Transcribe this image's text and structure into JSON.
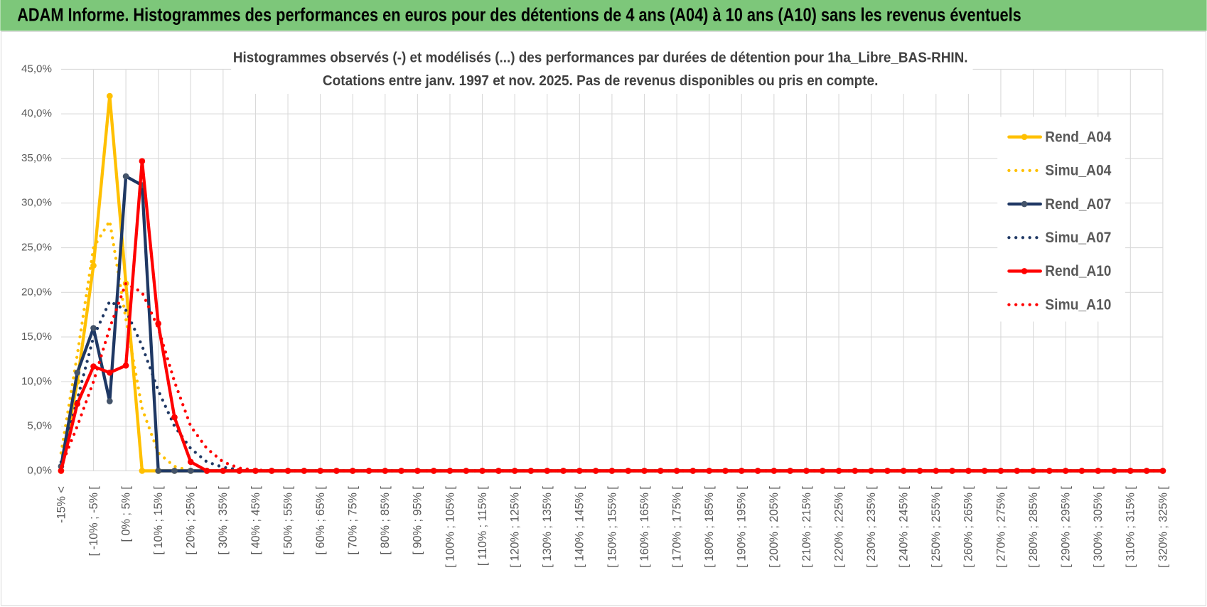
{
  "header": {
    "title": "ADAM Informe. Histogrammes des performances en euros pour des détentions de 4 ans (A04) à 10 ans (A10) sans les revenus éventuels"
  },
  "chart_data": {
    "type": "line",
    "title": "Histogrammes observés (-) et modélisés (...) des performances par durées de détention pour 1ha_Libre_BAS-RHIN.",
    "subtitle": "Cotations entre janv. 1997 et nov. 2025. Pas de revenus disponibles ou pris en compte.",
    "categories": [
      "-15% <",
      null,
      "[ -10% ; -5% [",
      null,
      "[ 0% ; 5% [",
      null,
      "[ 10% ; 15% [",
      null,
      "[ 20% ; 25% [",
      null,
      "[ 30% ; 35% [",
      null,
      "[ 40% ; 45% [",
      null,
      "[ 50% ; 55% [",
      null,
      "[ 60% ; 65% [",
      null,
      "[ 70% ; 75% [",
      null,
      "[ 80% ; 85% [",
      null,
      "[ 90% ; 95% [",
      null,
      "[ 100% ; 105% [",
      null,
      "[ 110% ; 115% [",
      null,
      "[ 120% ; 125% [",
      null,
      "[ 130% ; 135% [",
      null,
      "[ 140% ; 145% [",
      null,
      "[ 150% ; 155% [",
      null,
      "[ 160% ; 165% [",
      null,
      "[ 170% ; 175% [",
      null,
      "[ 180% ; 185% [",
      null,
      "[ 190% ; 195% [",
      null,
      "[ 200% ; 205% [",
      null,
      "[ 210% ; 215% [",
      null,
      "[ 220% ; 225% [",
      null,
      "[ 230% ; 235% [",
      null,
      "[ 240% ; 245% [",
      null,
      "[ 250% ; 255% [",
      null,
      "[ 260% ; 265% [",
      null,
      "[ 270% ; 275% [",
      null,
      "[ 280% ; 285% [",
      null,
      "[ 290% ; 295% [",
      null,
      "[ 300% ; 305% [",
      null,
      "[ 310% ; 315% [",
      null,
      "[ 320% ; 325% ["
    ],
    "ylim": [
      0,
      45
    ],
    "yticks": [
      {
        "value": 0,
        "label": "0,0%"
      },
      {
        "value": 5,
        "label": "5,0%"
      },
      {
        "value": 10,
        "label": "10,0%"
      },
      {
        "value": 15,
        "label": "15,0%"
      },
      {
        "value": 20,
        "label": "20,0%"
      },
      {
        "value": 25,
        "label": "25,0%"
      },
      {
        "value": 30,
        "label": "30,0%"
      },
      {
        "value": 35,
        "label": "35,0%"
      },
      {
        "value": 40,
        "label": "40,0%"
      },
      {
        "value": 45,
        "label": "45,0%"
      }
    ],
    "grid": true,
    "legend": "right",
    "series": [
      {
        "name": "Rend_A04",
        "color": "#ffc000",
        "style": "solid",
        "markers": true,
        "values": [
          0,
          10,
          23,
          42,
          21,
          0,
          0,
          0,
          0,
          0,
          0,
          0,
          0,
          0,
          0,
          0,
          0,
          0,
          0,
          0,
          0,
          0,
          0,
          0,
          0,
          0,
          0,
          0,
          0,
          0,
          0,
          0,
          0,
          0,
          0,
          0,
          0,
          0,
          0,
          0,
          0,
          0,
          0,
          0,
          0,
          0,
          0,
          0,
          0,
          0,
          0,
          0,
          0,
          0,
          0,
          0,
          0,
          0,
          0,
          0,
          0,
          0,
          0,
          0,
          0,
          0,
          0,
          0,
          0
        ]
      },
      {
        "name": "Simu_A04",
        "color": "#ffc000",
        "style": "dotted",
        "markers": false,
        "values": [
          2,
          13,
          25,
          28,
          17,
          7,
          2,
          0.5,
          0,
          0,
          0,
          0,
          0,
          0,
          0,
          0,
          0,
          0,
          0,
          0,
          0,
          0,
          0,
          0,
          0,
          0,
          0,
          0,
          0,
          0,
          0,
          0,
          0,
          0,
          0,
          0,
          0,
          0,
          0,
          0,
          0,
          0,
          0,
          0,
          0,
          0,
          0,
          0,
          0,
          0,
          0,
          0,
          0,
          0,
          0,
          0,
          0,
          0,
          0,
          0,
          0,
          0,
          0,
          0,
          0,
          0,
          0,
          0,
          0
        ]
      },
      {
        "name": "Rend_A07",
        "color": "#1f3864",
        "style": "solid",
        "markers": true,
        "values": [
          0.5,
          11,
          16,
          7.8,
          33,
          32,
          0,
          0,
          0,
          0,
          0,
          0,
          0,
          0,
          0,
          0,
          0,
          0,
          0,
          0,
          0,
          0,
          0,
          0,
          0,
          0,
          0,
          0,
          0,
          0,
          0,
          0,
          0,
          0,
          0,
          0,
          0,
          0,
          0,
          0,
          0,
          0,
          0,
          0,
          0,
          0,
          0,
          0,
          0,
          0,
          0,
          0,
          0,
          0,
          0,
          0,
          0,
          0,
          0,
          0,
          0,
          0,
          0,
          0,
          0,
          0,
          0,
          0,
          0
        ]
      },
      {
        "name": "Simu_A07",
        "color": "#1f3864",
        "style": "dotted",
        "markers": false,
        "values": [
          1,
          8,
          15,
          19,
          18,
          14,
          9,
          5,
          2.5,
          1,
          0.4,
          0.1,
          0,
          0,
          0,
          0,
          0,
          0,
          0,
          0,
          0,
          0,
          0,
          0,
          0,
          0,
          0,
          0,
          0,
          0,
          0,
          0,
          0,
          0,
          0,
          0,
          0,
          0,
          0,
          0,
          0,
          0,
          0,
          0,
          0,
          0,
          0,
          0,
          0,
          0,
          0,
          0,
          0,
          0,
          0,
          0,
          0,
          0,
          0,
          0,
          0,
          0,
          0,
          0,
          0,
          0,
          0,
          0,
          0
        ]
      },
      {
        "name": "Rend_A10",
        "color": "#ff0000",
        "style": "solid",
        "markers": true,
        "values": [
          0,
          7.5,
          11.7,
          11,
          11.8,
          34.7,
          16.5,
          6,
          1,
          0,
          0,
          0,
          0,
          0,
          0,
          0,
          0,
          0,
          0,
          0,
          0,
          0,
          0,
          0,
          0,
          0,
          0,
          0,
          0,
          0,
          0,
          0,
          0,
          0,
          0,
          0,
          0,
          0,
          0,
          0,
          0,
          0,
          0,
          0,
          0,
          0,
          0,
          0,
          0,
          0,
          0,
          0,
          0,
          0,
          0,
          0,
          0,
          0,
          0,
          0,
          0,
          0,
          0,
          0,
          0,
          0,
          0,
          0,
          0
        ]
      },
      {
        "name": "Simu_A10",
        "color": "#ff0000",
        "style": "dotted",
        "markers": false,
        "values": [
          0.5,
          5,
          10,
          16,
          21,
          20,
          16,
          10,
          5,
          2.5,
          1,
          0.3,
          0.1,
          0,
          0,
          0,
          0,
          0,
          0,
          0,
          0,
          0,
          0,
          0,
          0,
          0,
          0,
          0,
          0,
          0,
          0,
          0,
          0,
          0,
          0,
          0,
          0,
          0,
          0,
          0,
          0,
          0,
          0,
          0,
          0,
          0,
          0,
          0,
          0,
          0,
          0,
          0,
          0,
          0,
          0,
          0,
          0,
          0,
          0,
          0,
          0,
          0,
          0,
          0,
          0,
          0,
          0,
          0,
          0
        ]
      }
    ]
  }
}
